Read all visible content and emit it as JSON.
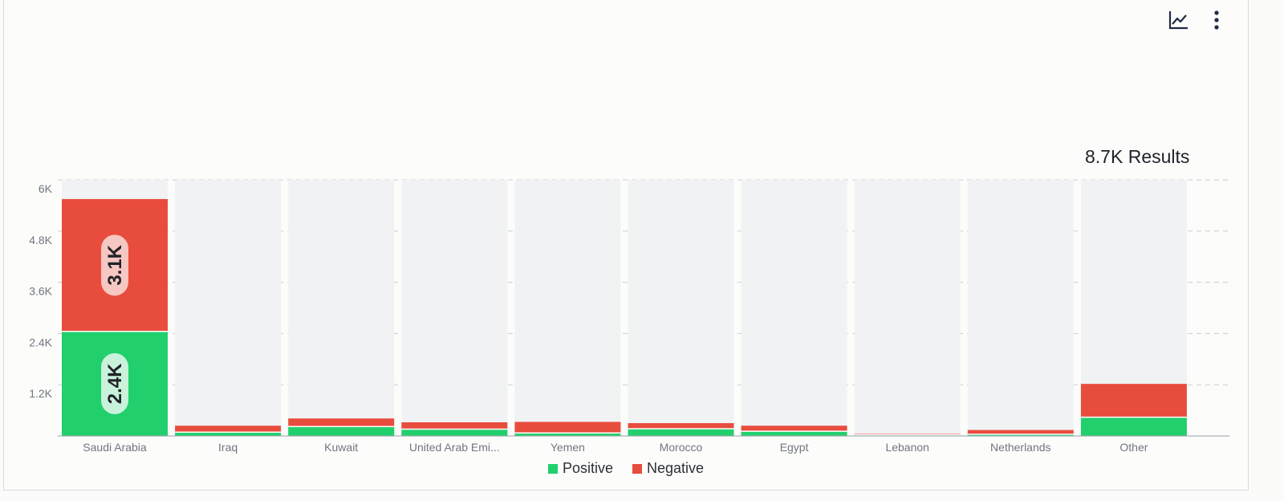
{
  "toolbar": {
    "chart_icon": "line-chart-icon",
    "menu_icon": "more-vertical-icon"
  },
  "results_label": "8.7K Results",
  "colors": {
    "positive": "#21cf6d",
    "negative": "#e84c3d",
    "track": "#f1f2f4",
    "grid": "#c9ccd1",
    "axis_text": "#707680",
    "label_text": "#1f2329"
  },
  "chart_data": {
    "type": "bar",
    "stacked": true,
    "categories": [
      "Saudi Arabia",
      "Iraq",
      "Kuwait",
      "United Arab Emi...",
      "Yemen",
      "Morocco",
      "Egypt",
      "Lebanon",
      "Netherlands",
      "Other"
    ],
    "series": [
      {
        "name": "Positive",
        "values": [
          2450,
          90,
          220,
          160,
          70,
          170,
          110,
          25,
          40,
          440
        ]
      },
      {
        "name": "Negative",
        "values": [
          3100,
          150,
          190,
          160,
          260,
          130,
          130,
          25,
          100,
          780
        ]
      }
    ],
    "data_labels": [
      {
        "category": "Saudi Arabia",
        "series": "Negative",
        "text": "3.1K"
      },
      {
        "category": "Saudi Arabia",
        "series": "Positive",
        "text": "2.4K"
      }
    ],
    "yticks": [
      "6K",
      "4.8K",
      "3.6K",
      "2.4K",
      "1.2K"
    ],
    "ytick_values": [
      6000,
      4800,
      3600,
      2400,
      1200
    ],
    "ylim": [
      0,
      6000
    ],
    "grid": true,
    "legend": "bottom-center"
  }
}
